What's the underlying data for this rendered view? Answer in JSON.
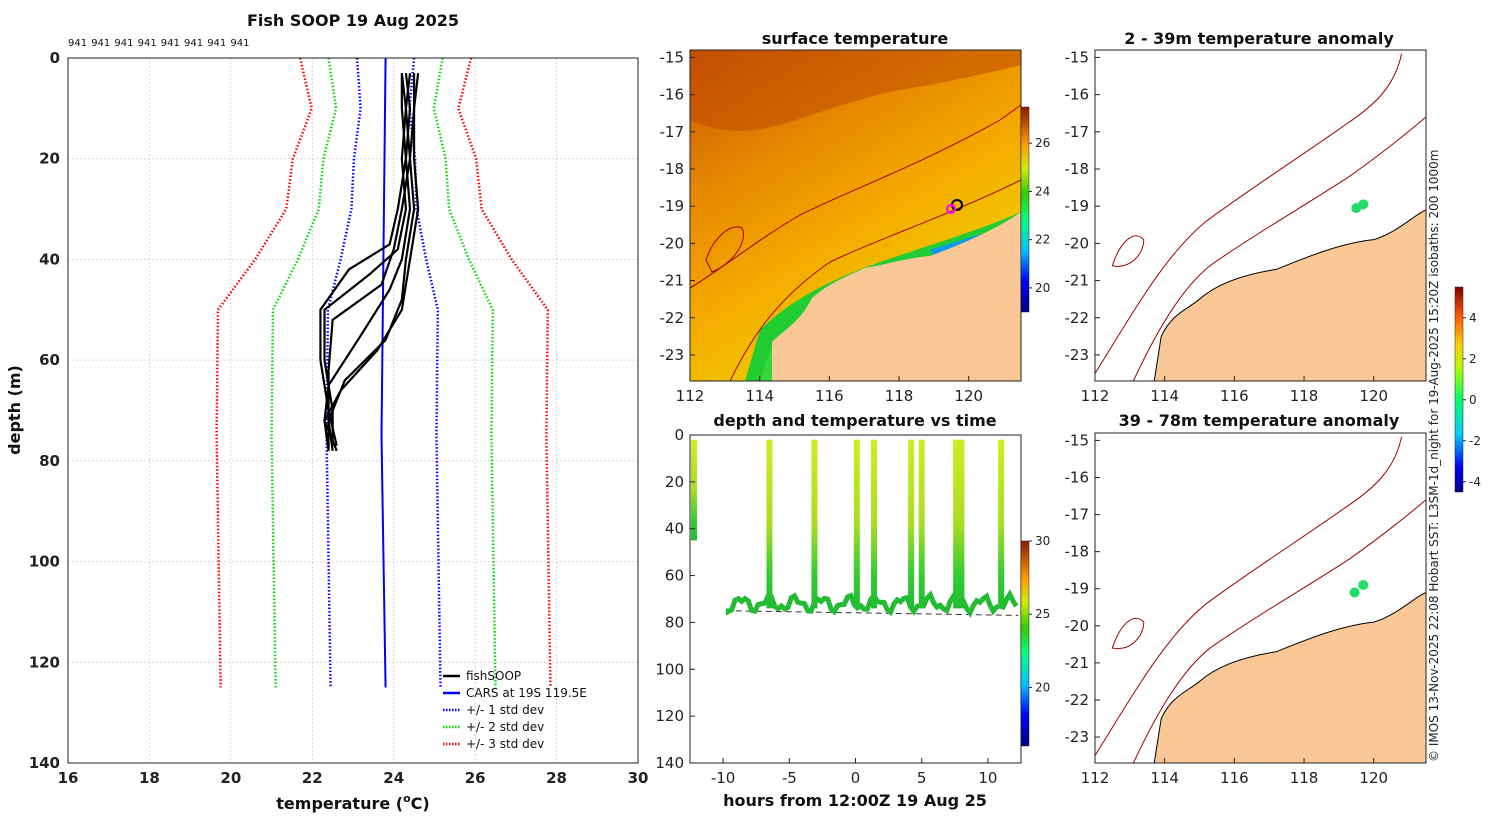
{
  "colors": {
    "fishSOOP": "#000000",
    "cars": "#0000ff",
    "std1": "#0000ff",
    "std2": "#00dd00",
    "std3": "#ff0000",
    "land": "#f9c896",
    "isobath": "#a00000"
  },
  "chart_data": [
    {
      "id": "profile",
      "type": "line",
      "title": "Fish SOOP 19 Aug 2025",
      "id_labels": [
        "941",
        "941",
        "941",
        "941",
        "941",
        "941",
        "941",
        "941"
      ],
      "xlabel": "temperature (",
      "xlabel_sup": "o",
      "xlabel_end": "C)",
      "ylabel": "depth (m)",
      "xlim": [
        16,
        30
      ],
      "ylim": [
        0,
        140
      ],
      "xticks": [
        16,
        18,
        20,
        22,
        24,
        26,
        28,
        30
      ],
      "yticks": [
        0,
        20,
        40,
        60,
        80,
        100,
        120,
        140
      ],
      "cars_depths": [
        0,
        75,
        125
      ],
      "cars_mean": [
        23.8,
        23.7,
        23.8
      ],
      "std_depths": [
        0,
        10,
        20,
        30,
        40,
        50,
        60,
        75,
        125
      ],
      "std_offsets": [
        0.7,
        0.6,
        0.75,
        0.8,
        1.05,
        1.35,
        1.35,
        1.35,
        1.35
      ],
      "legend": [
        "fishSOOP",
        "CARS at 19S 119.5E",
        "+/- 1 std dev",
        "+/- 2 std dev",
        "+/- 3 std dev"
      ],
      "series": [
        {
          "name": "cast1",
          "depth": [
            3,
            10,
            20,
            30,
            38,
            43,
            50,
            60,
            70,
            77
          ],
          "temp": [
            24.2,
            24.3,
            24.2,
            24.3,
            24.1,
            23.4,
            22.3,
            22.3,
            22.5,
            22.5
          ]
        },
        {
          "name": "cast2",
          "depth": [
            3,
            10,
            20,
            30,
            38,
            45,
            52,
            62,
            70,
            77
          ],
          "temp": [
            24.4,
            24.3,
            24.4,
            24.2,
            24.0,
            23.7,
            22.5,
            22.4,
            22.4,
            22.6
          ]
        },
        {
          "name": "cast3",
          "depth": [
            3,
            10,
            20,
            30,
            40,
            46,
            55,
            65,
            72,
            78
          ],
          "temp": [
            24.3,
            24.4,
            24.3,
            24.4,
            24.2,
            23.9,
            23.2,
            22.4,
            22.3,
            22.4
          ]
        },
        {
          "name": "cast4",
          "depth": [
            3,
            10,
            20,
            30,
            40,
            48,
            56,
            64,
            72,
            78
          ],
          "temp": [
            24.5,
            24.5,
            24.4,
            24.5,
            24.3,
            24.2,
            23.8,
            22.8,
            22.4,
            22.5
          ]
        },
        {
          "name": "cast5",
          "depth": [
            3,
            10,
            20,
            30,
            40,
            50,
            58,
            66,
            72,
            78
          ],
          "temp": [
            24.6,
            24.5,
            24.5,
            24.6,
            24.4,
            24.2,
            23.6,
            22.7,
            22.3,
            22.6
          ]
        },
        {
          "name": "cast6",
          "depth": [
            3,
            10,
            20,
            30,
            37,
            42,
            50,
            60,
            70,
            78
          ],
          "temp": [
            24.2,
            24.2,
            24.3,
            24.1,
            23.9,
            22.9,
            22.2,
            22.2,
            22.4,
            22.4
          ]
        }
      ]
    },
    {
      "id": "sst",
      "type": "heatmap",
      "title": "surface temperature",
      "xlim": [
        112,
        121.5
      ],
      "ylim": [
        -23.7,
        -14.8
      ],
      "xticks": [
        112,
        114,
        116,
        118,
        120
      ],
      "yticks": [
        -15,
        -16,
        -17,
        -18,
        -19,
        -20,
        -21,
        -22,
        -23
      ],
      "colorbar_range": [
        19,
        27.5
      ],
      "colorbar_ticks": [
        20,
        22,
        24,
        26
      ]
    },
    {
      "id": "timeseries",
      "type": "scatter",
      "title": "depth and temperature vs time",
      "xlabel": "hours from 12:00Z 19 Aug 25",
      "xlim": [
        -12.5,
        12.5
      ],
      "ylim": [
        0,
        140
      ],
      "xticks": [
        -10,
        -5,
        0,
        5,
        10
      ],
      "yticks": [
        0,
        20,
        40,
        60,
        80,
        100,
        120,
        140
      ],
      "colorbar_range": [
        16,
        30
      ],
      "colorbar_ticks": [
        20,
        25,
        30
      ],
      "casts_hours": [
        -12.2,
        -6.5,
        -3.1,
        0.1,
        1.4,
        4.2,
        5.0,
        7.6,
        8.0,
        11.0
      ],
      "bottom_depth": 75
    },
    {
      "id": "anom_shallow",
      "type": "scatter",
      "title": "2 - 39m temperature anomaly",
      "xlim": [
        112,
        121.5
      ],
      "ylim": [
        -23.7,
        -14.8
      ],
      "xticks": [
        112,
        114,
        116,
        118,
        120
      ],
      "yticks": [
        -15,
        -16,
        -17,
        -18,
        -19,
        -20,
        -21,
        -22,
        -23
      ],
      "points": [
        {
          "lon": 119.5,
          "lat": -19.05,
          "anom": 0.4
        },
        {
          "lon": 119.7,
          "lat": -18.95,
          "anom": 0.5
        }
      ]
    },
    {
      "id": "anom_deep",
      "type": "scatter",
      "title": "39 - 78m temperature anomaly",
      "xlim": [
        112,
        121.5
      ],
      "ylim": [
        -23.7,
        -14.8
      ],
      "xticks": [
        112,
        114,
        116,
        118,
        120
      ],
      "yticks": [
        -15,
        -16,
        -17,
        -18,
        -19,
        -20,
        -21,
        -22,
        -23
      ],
      "points": [
        {
          "lon": 119.45,
          "lat": -19.1,
          "anom": 0.2
        },
        {
          "lon": 119.7,
          "lat": -18.9,
          "anom": 0.3
        }
      ]
    }
  ],
  "anomaly_colorbar": {
    "range": [
      -4.5,
      5.5
    ],
    "ticks": [
      4,
      2,
      0,
      -2,
      -4
    ]
  },
  "credit": "© IMOS 13-Nov-2025 22:08 Hobart SST: L3SM-1d_night for 19-Aug-2025 15:20Z isobaths: 200  1000m"
}
